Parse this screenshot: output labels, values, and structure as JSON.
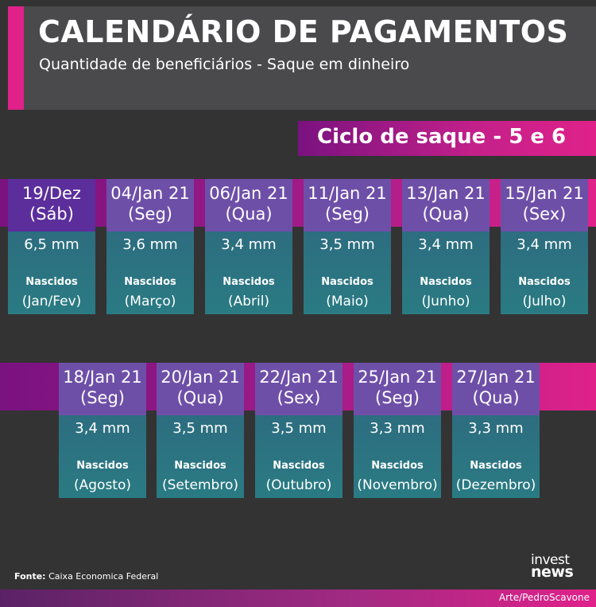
{
  "header": {
    "title": "CALENDÁRIO DE PAGAMENTOS",
    "subtitle": "Quantidade de beneficiários - Saque em dinheiro"
  },
  "cycle_label": "Ciclo de saque - 5 e 6",
  "row1": [
    {
      "date": "19/Dez",
      "weekday": "(Sáb)",
      "qty": "6,5 mm",
      "born": "Nascidos",
      "month": "(Jan/Fev)"
    },
    {
      "date": "04/Jan 21",
      "weekday": "(Seg)",
      "qty": "3,6 mm",
      "born": "Nascidos",
      "month": "(Março)"
    },
    {
      "date": "06/Jan 21",
      "weekday": "(Qua)",
      "qty": "3,4 mm",
      "born": "Nascidos",
      "month": "(Abril)"
    },
    {
      "date": "11/Jan 21",
      "weekday": "(Seg)",
      "qty": "3,5 mm",
      "born": "Nascidos",
      "month": "(Maio)"
    },
    {
      "date": "13/Jan 21",
      "weekday": "(Qua)",
      "qty": "3,4 mm",
      "born": "Nascidos",
      "month": "(Junho)"
    },
    {
      "date": "15/Jan 21",
      "weekday": "(Sex)",
      "qty": "3,4 mm",
      "born": "Nascidos",
      "month": "(Julho)"
    }
  ],
  "row2": [
    {
      "date": "18/Jan 21",
      "weekday": "(Seg)",
      "qty": "3,4 mm",
      "born": "Nascidos",
      "month": "(Agosto)"
    },
    {
      "date": "20/Jan 21",
      "weekday": "(Qua)",
      "qty": "3,5 mm",
      "born": "Nascidos",
      "month": "(Setembro)"
    },
    {
      "date": "22/Jan 21",
      "weekday": "(Sex)",
      "qty": "3,5 mm",
      "born": "Nascidos",
      "month": "(Outubro)"
    },
    {
      "date": "25/Jan 21",
      "weekday": "(Seg)",
      "qty": "3,3 mm",
      "born": "Nascidos",
      "month": "(Novembro)"
    },
    {
      "date": "27/Jan 21",
      "weekday": "(Qua)",
      "qty": "3,3 mm",
      "born": "Nascidos",
      "month": "(Dezembro)"
    }
  ],
  "footer": {
    "source_label": "Fonte:",
    "source_text": "Caixa Economica Federal",
    "logo_line1": "invest",
    "logo_line2": "news",
    "credit": "Arte/PedroScavone"
  },
  "colors": {
    "background": "#333333",
    "header_bg": "#4a4a4c",
    "accent_pink": "#e0218a",
    "accent_purple": "#7a1280",
    "date_cell": "#6e4fa8",
    "body_cell": "#2a7b83"
  }
}
